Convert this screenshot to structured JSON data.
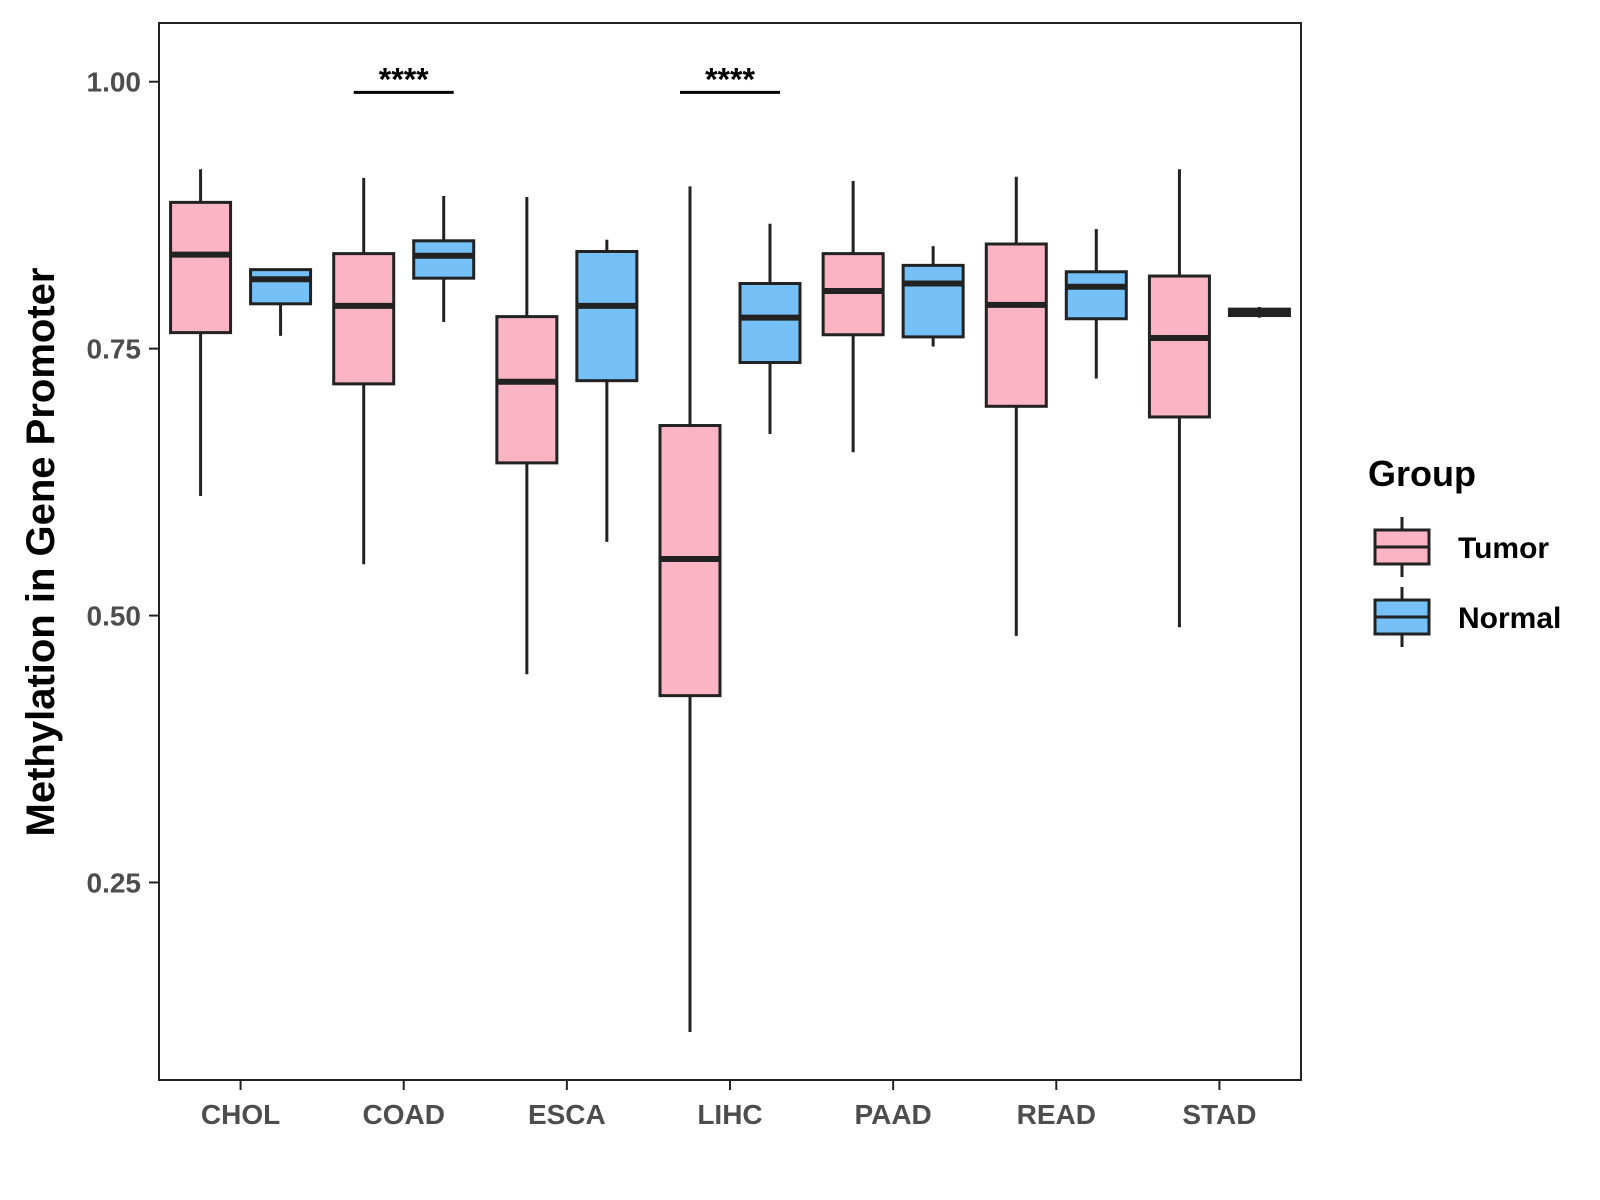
{
  "chart_data": {
    "type": "boxplot",
    "title": "",
    "xlabel": "",
    "ylabel": "Methylation in Gene Promoter",
    "ylim": [
      0.065,
      1.055
    ],
    "yticks": [
      0.25,
      0.5,
      0.75,
      1.0
    ],
    "ytick_labels": [
      "0.25",
      "0.50",
      "0.75",
      "1.00"
    ],
    "grid": false,
    "categories": [
      "CHOL",
      "COAD",
      "ESCA",
      "LIHC",
      "PAAD",
      "READ",
      "STAD"
    ],
    "legend": {
      "title": "Group",
      "position": "right",
      "items": [
        {
          "name": "Tumor",
          "color": "#fbb4c4"
        },
        {
          "name": "Normal",
          "color": "#74c0f7"
        }
      ]
    },
    "series": [
      {
        "name": "Tumor",
        "color": "#fbb4c4",
        "boxes": [
          {
            "min": 0.612,
            "q1": 0.765,
            "median": 0.838,
            "q3": 0.887,
            "max": 0.918
          },
          {
            "min": 0.548,
            "q1": 0.717,
            "median": 0.79,
            "q3": 0.839,
            "max": 0.91
          },
          {
            "min": 0.445,
            "q1": 0.643,
            "median": 0.719,
            "q3": 0.78,
            "max": 0.892
          },
          {
            "min": 0.11,
            "q1": 0.425,
            "median": 0.553,
            "q3": 0.678,
            "max": 0.902
          },
          {
            "min": 0.653,
            "q1": 0.763,
            "median": 0.804,
            "q3": 0.839,
            "max": 0.907
          },
          {
            "min": 0.481,
            "q1": 0.696,
            "median": 0.791,
            "q3": 0.848,
            "max": 0.911
          },
          {
            "min": 0.489,
            "q1": 0.686,
            "median": 0.76,
            "q3": 0.818,
            "max": 0.918
          }
        ]
      },
      {
        "name": "Normal",
        "color": "#74c0f7",
        "boxes": [
          {
            "min": 0.762,
            "q1": 0.792,
            "median": 0.815,
            "q3": 0.824,
            "max": 0.824
          },
          {
            "min": 0.775,
            "q1": 0.816,
            "median": 0.837,
            "q3": 0.851,
            "max": 0.893
          },
          {
            "min": 0.569,
            "q1": 0.72,
            "median": 0.79,
            "q3": 0.841,
            "max": 0.852
          },
          {
            "min": 0.67,
            "q1": 0.737,
            "median": 0.779,
            "q3": 0.811,
            "max": 0.867
          },
          {
            "min": 0.752,
            "q1": 0.761,
            "median": 0.811,
            "q3": 0.828,
            "max": 0.846
          },
          {
            "min": 0.722,
            "q1": 0.778,
            "median": 0.808,
            "q3": 0.822,
            "max": 0.862
          },
          {
            "min": 0.779,
            "q1": 0.781,
            "median": 0.784,
            "q3": 0.787,
            "max": 0.789
          }
        ]
      }
    ],
    "annotations": [
      {
        "category": "COAD",
        "text": "****",
        "y": 0.99
      },
      {
        "category": "LIHC",
        "text": "****",
        "y": 0.99
      }
    ]
  }
}
